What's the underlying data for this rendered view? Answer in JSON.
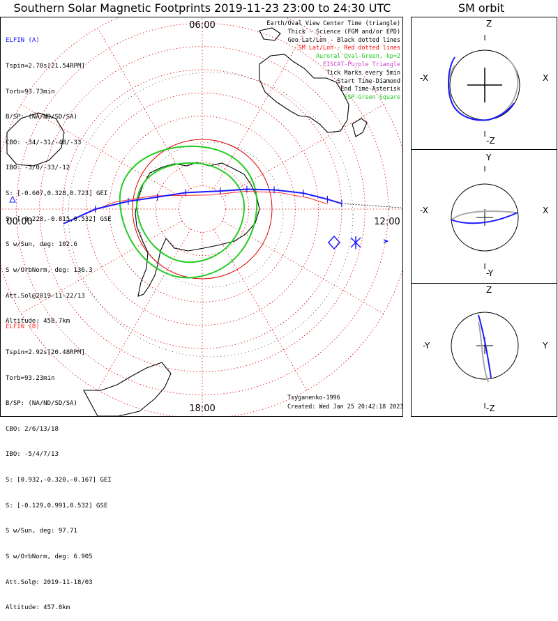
{
  "title": "Southern Solar Magnetic Footprints 2019-11-23 23:00 to 24:30 UTC",
  "sm_title": "SM orbit",
  "colors": {
    "elfin_a": "#1a1aff",
    "elfin_b": "#ff3030",
    "aurora": "#22cc22",
    "grid": "#dd0000",
    "eiscat": "#cc44cc"
  },
  "elfin_a": {
    "name": "ELFIN (A)",
    "lines": [
      "Tspin=2.78s[21.54RPM]",
      "Torb=93.73min",
      "B/SP: (NA/ND/SD/SA)",
      "CBO: -34/-31/-48/-33",
      "IBO: -3/0/-33/-12",
      "S: [-0.607,0.328,0.723] GEI",
      "S: [-0.228,-0.815,0.532] GSE",
      "S w/Sun, deg: 102.6",
      "S w/OrbNorm, deg: 136.3",
      "Att.Sol@2019-11-22/13",
      "Altitude: 458.7km"
    ]
  },
  "elfin_b": {
    "name": "ELFIN (B)",
    "lines": [
      "Tspin=2.92s[20.48RPM]",
      "Torb=93.23min",
      "B/SP: (NA/ND/SD/SA)",
      "CBO: 2/6/13/18",
      "IBO: -5/4/7/13",
      "S: [0.932,-0.320,-0.167] GEI",
      "S: [-0.129,0.991,0.532] GSE",
      "S w/Sun, deg: 97.71",
      "S w/OrbNorm, deg: 6.905",
      "Att.Sol@: 2019-11-18/03",
      "Altitude: 457.8km"
    ]
  },
  "legend": [
    {
      "text": "Earth/Oval View Center Time (triangle)",
      "color": "#000000"
    },
    {
      "text": "Thick - Science (FGM and/or EPD)",
      "color": "#000000"
    },
    {
      "text": "Geo Lat/Lon - Black dotted lines",
      "color": "#000000"
    },
    {
      "text": "SM Lat/Lon - Red dotted lines",
      "color": "#ff0000"
    },
    {
      "text": "Auroral Oval-Green, kp=2",
      "color": "#22cc22"
    },
    {
      "text": "EISCAT-Purple Triangle",
      "color": "#cc44cc"
    },
    {
      "text": "Tick Marks every 5min",
      "color": "#000000"
    },
    {
      "text": "Start Time-Diamond",
      "color": "#000000"
    },
    {
      "text": "End Time-Asterisk",
      "color": "#000000"
    },
    {
      "text": "SSP-Green Square",
      "color": "#22cc22"
    }
  ],
  "credit": {
    "model": "Tsyganenko-1996",
    "created": "Created: Wed Jan 25 20:42:18 2023"
  },
  "chart_data": [
    {
      "type": "polar-map",
      "title": "Southern Solar Magnetic Footprints 2019-11-23 23:00 to 24:30 UTC",
      "mlt_labels": [
        "06:00",
        "12:00",
        "18:00",
        "00:00"
      ],
      "sm_lat_circles_deg": [
        -80,
        -70,
        -60,
        -50,
        -40,
        -30,
        -20,
        -10,
        0
      ],
      "sm_lon_spokes_deg": [
        0,
        30,
        60,
        90,
        120,
        150,
        180,
        210,
        240,
        270,
        300,
        330
      ],
      "auroral_oval_kp": 2,
      "elfin_a_track_mlt_lat": [
        [
          23.6,
          -30
        ],
        [
          0.0,
          -44
        ],
        [
          0.4,
          -58
        ],
        [
          1.0,
          -70
        ],
        [
          3.0,
          -80
        ],
        [
          9.0,
          -79
        ],
        [
          10.4,
          -69
        ],
        [
          11.0,
          -58
        ],
        [
          11.4,
          -46
        ],
        [
          11.7,
          -36
        ],
        [
          11.85,
          -30
        ]
      ],
      "elfin_b_track_mlt_lat": [
        [
          23.7,
          -34
        ],
        [
          0.3,
          -52
        ],
        [
          1.0,
          -68
        ],
        [
          8.0,
          -83
        ],
        [
          10.5,
          -70
        ],
        [
          11.2,
          -56
        ],
        [
          11.6,
          -44
        ],
        [
          11.85,
          -36
        ]
      ]
    },
    {
      "type": "line",
      "title": "SM orbit",
      "panels": [
        {
          "axes": [
            "X",
            "Z"
          ],
          "xlabels": [
            "-X",
            "X"
          ],
          "ylabels": [
            "Z",
            "-Z"
          ]
        },
        {
          "axes": [
            "X",
            "Y"
          ],
          "xlabels": [
            "-X",
            "X"
          ],
          "ylabels": [
            "Y",
            "-Y"
          ]
        },
        {
          "axes": [
            "Y",
            "Z"
          ],
          "xlabels": [
            "-Y",
            "Y"
          ],
          "ylabels": [
            "Z",
            "-Z"
          ]
        }
      ]
    }
  ]
}
